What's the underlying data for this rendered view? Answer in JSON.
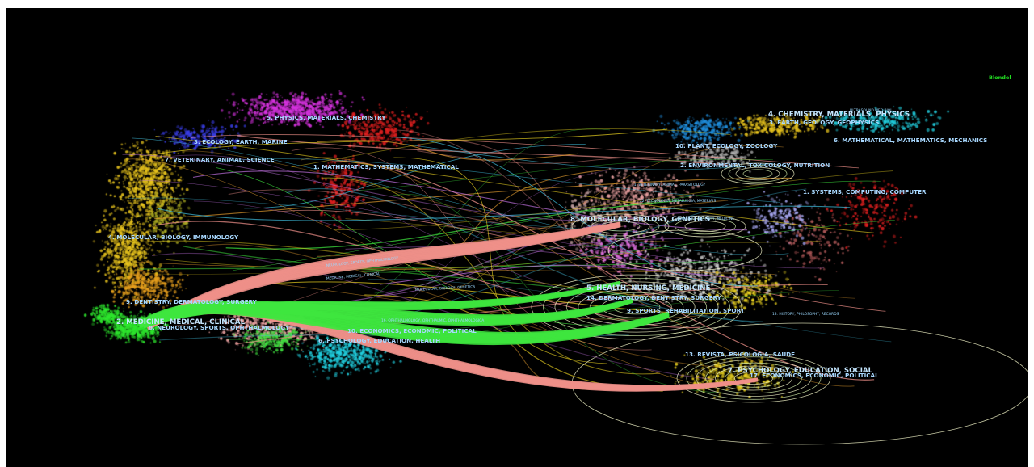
{
  "legend": "Blondel",
  "left_clusters": [
    "5. PHYSICS, MATERIALS, CHEMISTRY",
    "3. ECOLOGY, EARTH, MARINE",
    "7. VETERINARY, ANIMAL, SCIENCE",
    "1. MATHEMATICS, SYSTEMS, MATHEMATICAL",
    "4. MOLECULAR, BIOLOGY, IMMUNOLOGY",
    "9. DENTISTRY, DERMATOLOGY, SURGERY",
    "2. MEDICINE, MEDICAL, CLINICAL",
    "8. NEUROLOGY, SPORTS, OPHTHALMOLOGY",
    "10. ECONOMICS, ECONOMIC, POLITICAL",
    "6. PSYCHOLOGY, EDUCATION, HEALTH",
    "16. OPHTHALMOLOGY, OPHTHALMIC, OPHTHALMOLOGICA"
  ],
  "right_clusters": [
    "4. CHEMISTRY, MATERIALS, PHYSICS",
    "10. PLANT, ECOLOGY, ZOOLOGY",
    "3. EARTH, GEOLOGY, GEOPHYSICS",
    "6. MATHEMATICAL, MATHEMATICS, MECHANICS",
    "2. ENVIRONMENTAL, TOXICOLOGY, NUTRITION",
    "11. VETERINARY, ANIMAL, PARASITOLOGY",
    "1. SYSTEMS, COMPUTING, COMPUTER",
    "8. MOLECULAR, BIOLOGY, GENETICS",
    "FORENSIC, ANATOMY, MEDICINE",
    "5. HEALTH, NURSING, MEDICINE",
    "14. DERMATOLOGY, DENTISTRY, SURGERY",
    "9. SPORTS, REHABILITATION, SPORT",
    "18. HISTORY, PHILOSOPHY, RECORDS",
    "13. REVISTA, PSICOLOGIA, SAUDE",
    "7. PSYCHOLOGY, EDUCATION, SOCIAL",
    "17. ECONOMICS, ECONOMIC, POLITICAL"
  ],
  "small_labels": [
    "22. TECNOLOGIA, METALURGIA, MATERIAIS",
    "NEUROLOGY, SPORTS, OPHTHALMOLOGY",
    "MEDICINE, MEDICAL, CLINICAL",
    "ULTRASOUND MED BIOL",
    "MOLECULAR, BIOLOGY, GENETICS"
  ],
  "colors": {
    "background": "#000000",
    "medicine_flow": "#3ee63e",
    "molecular_flow": "#f0908a",
    "ring": "#f2f5c8",
    "label": "#a8d8ff",
    "legend": "#22dd22"
  }
}
